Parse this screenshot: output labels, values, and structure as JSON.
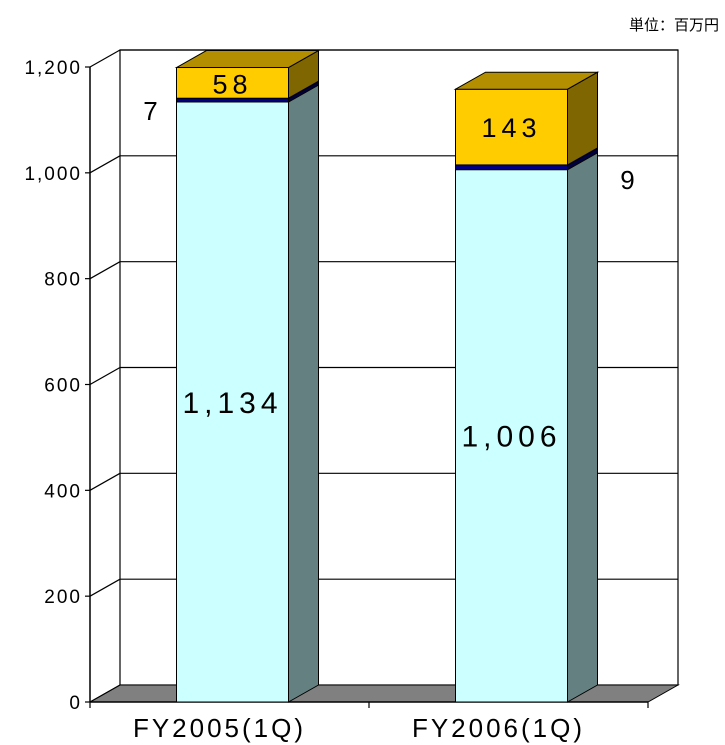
{
  "unit_label": "単位：百万円",
  "colors": {
    "base_front": "#ccffff",
    "base_side": "#658080",
    "thin_front": "#000080",
    "thin_side": "#000040",
    "top_front": "#ffcc00",
    "top_side": "#806600",
    "top_cap": "#b38f00",
    "floor": "#808080",
    "wall": "#ffffff",
    "grid": "#000000"
  },
  "chart_data": {
    "type": "bar",
    "stacked": true,
    "three_d": true,
    "categories": [
      "FY2005(1Q)",
      "FY2006(1Q)"
    ],
    "series": [
      {
        "values": [
          1134,
          1006
        ],
        "data_labels": [
          "1,134",
          "1,006"
        ]
      },
      {
        "values": [
          7,
          9
        ],
        "data_labels": [
          "7",
          "9"
        ]
      },
      {
        "values": [
          58,
          143
        ],
        "data_labels": [
          "58",
          "143"
        ]
      }
    ],
    "ylim": [
      0,
      1200
    ],
    "yticks": [
      0,
      200,
      400,
      600,
      800,
      1000,
      1200
    ],
    "ytick_labels": [
      "0",
      "200",
      "400",
      "600",
      "800",
      "1,000",
      "1,200"
    ],
    "grid": true,
    "legend": "none"
  }
}
